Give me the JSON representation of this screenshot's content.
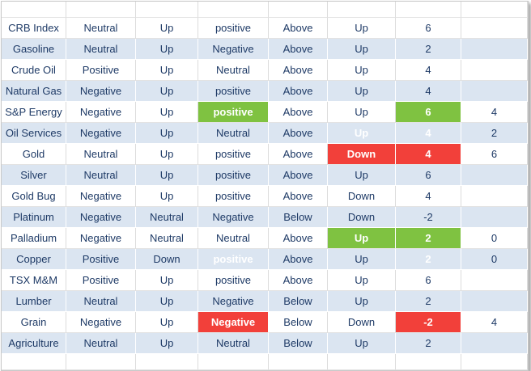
{
  "chart_data": {
    "type": "table",
    "title": "",
    "header_row": [
      "",
      "",
      "",
      "",
      "",
      "",
      "",
      ""
    ],
    "rows": [
      {
        "cells": [
          "CRB Index",
          "Neutral",
          "Up",
          "positive",
          "Above",
          "Up",
          "6",
          ""
        ],
        "highlights": {}
      },
      {
        "cells": [
          "Gasoline",
          "Neutral",
          "Up",
          "Negative",
          "Above",
          "Up",
          "2",
          ""
        ],
        "highlights": {}
      },
      {
        "cells": [
          "Crude Oil",
          "Positive",
          "Up",
          "Neutral",
          "Above",
          "Up",
          "4",
          ""
        ],
        "highlights": {}
      },
      {
        "cells": [
          "Natural Gas",
          "Negative",
          "Up",
          "positive",
          "Above",
          "Up",
          "4",
          ""
        ],
        "highlights": {}
      },
      {
        "cells": [
          "S&P Energy",
          "Negative",
          "Up",
          "positive",
          "Above",
          "Up",
          "6",
          "4"
        ],
        "highlights": {
          "3": "green",
          "6": "green"
        }
      },
      {
        "cells": [
          "Oil Services",
          "Negative",
          "Up",
          "Neutral",
          "Above",
          "Up",
          "4",
          "2"
        ],
        "highlights": {
          "5": "green",
          "6": "green"
        }
      },
      {
        "cells": [
          "Gold",
          "Neutral",
          "Up",
          "positive",
          "Above",
          "Down",
          "4",
          "6"
        ],
        "highlights": {
          "5": "red",
          "6": "red"
        }
      },
      {
        "cells": [
          "Silver",
          "Neutral",
          "Up",
          "positive",
          "Above",
          "Up",
          "6",
          ""
        ],
        "highlights": {}
      },
      {
        "cells": [
          "Gold Bug",
          "Negative",
          "Up",
          "positive",
          "Above",
          "Down",
          "4",
          ""
        ],
        "highlights": {}
      },
      {
        "cells": [
          "Platinum",
          "Negative",
          "Neutral",
          "Negative",
          "Below",
          "Down",
          "-2",
          ""
        ],
        "highlights": {}
      },
      {
        "cells": [
          "Palladium",
          "Negative",
          "Neutral",
          "Neutral",
          "Above",
          "Up",
          "2",
          "0"
        ],
        "highlights": {
          "5": "green",
          "6": "green"
        }
      },
      {
        "cells": [
          "Copper",
          "Positive",
          "Down",
          "positive",
          "Above",
          "Up",
          "2",
          "0"
        ],
        "highlights": {
          "3": "green",
          "6": "green"
        }
      },
      {
        "cells": [
          "TSX M&M",
          "Positive",
          "Up",
          "positive",
          "Above",
          "Up",
          "6",
          ""
        ],
        "highlights": {}
      },
      {
        "cells": [
          "Lumber",
          "Neutral",
          "Up",
          "Negative",
          "Below",
          "Up",
          "2",
          ""
        ],
        "highlights": {}
      },
      {
        "cells": [
          "Grain",
          "Negative",
          "Up",
          "Negative",
          "Below",
          "Down",
          "-2",
          "4"
        ],
        "highlights": {
          "3": "red",
          "6": "red"
        }
      },
      {
        "cells": [
          "Agriculture",
          "Neutral",
          "Up",
          "Neutral",
          "Below",
          "Up",
          "2",
          ""
        ],
        "highlights": {}
      }
    ],
    "colors": {
      "band_blue": "#dbe5f1",
      "dark_text": "#1e3a66",
      "highlight_green": "#7fc241",
      "highlight_red": "#f2403a",
      "highlight_text": "#ffffff"
    },
    "layout_hints": {
      "banded_rows": true,
      "first_data_row_background": "white",
      "empty_header_row": true,
      "empty_footer_row": true
    }
  }
}
